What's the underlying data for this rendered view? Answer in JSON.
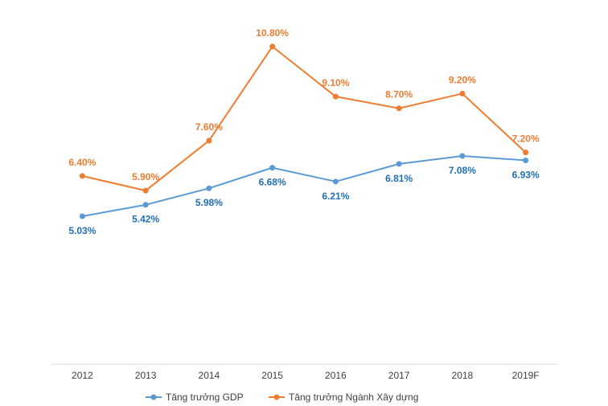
{
  "chart_data": {
    "type": "line",
    "title": "",
    "xlabel": "",
    "ylabel": "",
    "categories": [
      "2012",
      "2013",
      "2014",
      "2015",
      "2016",
      "2017",
      "2018",
      "2019F"
    ],
    "ylim": [
      0,
      12
    ],
    "grid": false,
    "legend_position": "bottom",
    "series": [
      {
        "name": "Tăng trưởng GDP",
        "color": "#5b9bd5",
        "label_color": "#1f6fb4",
        "values": [
          5.03,
          5.42,
          5.98,
          6.68,
          6.21,
          6.81,
          7.08,
          6.93
        ],
        "labels": [
          "5.03%",
          "5.42%",
          "5.98%",
          "6.68%",
          "6.21%",
          "6.81%",
          "7.08%",
          "6.93%"
        ],
        "label_position": "below"
      },
      {
        "name": "Tăng trưởng Ngành Xây dựng",
        "color": "#ed7d31",
        "label_color": "#ed7d31",
        "values": [
          6.4,
          5.9,
          7.6,
          10.8,
          9.1,
          8.7,
          9.2,
          7.2
        ],
        "labels": [
          "6.40%",
          "5.90%",
          "7.60%",
          "10.80%",
          "9.10%",
          "8.70%",
          "9.20%",
          "7.20%"
        ],
        "label_position": "above"
      }
    ]
  }
}
